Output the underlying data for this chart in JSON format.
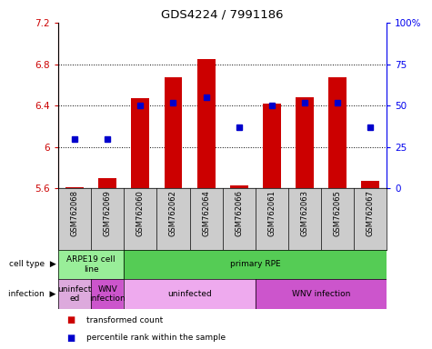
{
  "title": "GDS4224 / 7991186",
  "samples": [
    "GSM762068",
    "GSM762069",
    "GSM762060",
    "GSM762062",
    "GSM762064",
    "GSM762066",
    "GSM762061",
    "GSM762063",
    "GSM762065",
    "GSM762067"
  ],
  "transformed_counts": [
    5.61,
    5.7,
    6.47,
    6.67,
    6.85,
    5.63,
    6.42,
    6.48,
    6.67,
    5.67
  ],
  "percentile_ranks": [
    30,
    30,
    50,
    52,
    55,
    37,
    50,
    52,
    52,
    37
  ],
  "ylim_left": [
    5.6,
    7.2
  ],
  "ylim_right": [
    0,
    100
  ],
  "yticks_left": [
    5.6,
    6.0,
    6.4,
    6.8,
    7.2
  ],
  "yticks_right": [
    0,
    25,
    50,
    75,
    100
  ],
  "ytick_labels_right": [
    "0",
    "25",
    "50",
    "75",
    "100%"
  ],
  "bar_color": "#CC0000",
  "dot_color": "#0000CC",
  "baseline": 5.6,
  "cell_type_spans": [
    {
      "label": "ARPE19 cell\nline",
      "start": 0,
      "end": 2,
      "color": "#99EE99"
    },
    {
      "label": "primary RPE",
      "start": 2,
      "end": 10,
      "color": "#55CC55"
    }
  ],
  "infection_spans": [
    {
      "label": "uninfect\ned",
      "start": 0,
      "end": 1,
      "color": "#DDAADD"
    },
    {
      "label": "WNV\ninfection",
      "start": 1,
      "end": 2,
      "color": "#CC55CC"
    },
    {
      "label": "uninfected",
      "start": 2,
      "end": 6,
      "color": "#EEAAEE"
    },
    {
      "label": "WNV infection",
      "start": 6,
      "end": 10,
      "color": "#CC55CC"
    }
  ],
  "legend_items": [
    "transformed count",
    "percentile rank within the sample"
  ],
  "sample_bg_color": "#CCCCCC",
  "border_color": "#000000"
}
